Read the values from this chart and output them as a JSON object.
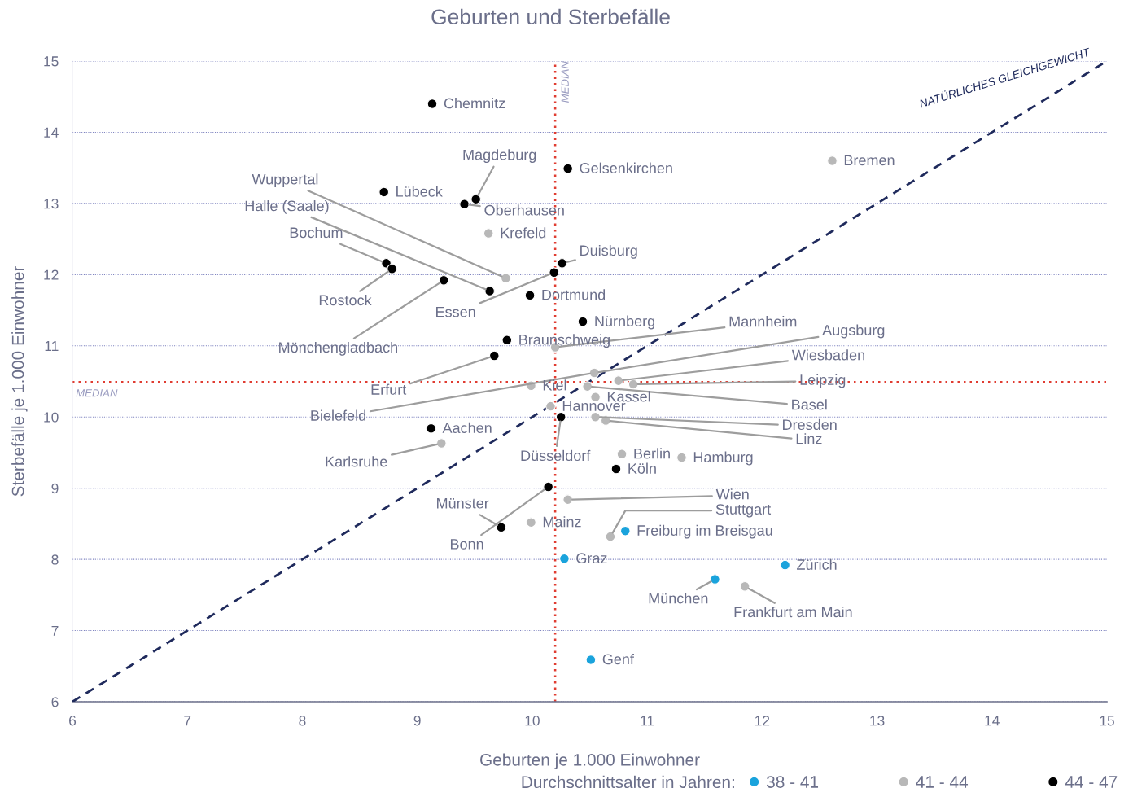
{
  "chart_data": {
    "type": "scatter",
    "title": "Geburten und Sterbefälle",
    "xlabel": "Geburten je 1.000 Einwohner",
    "ylabel": "Sterbefälle je 1.000 Einwohner",
    "legend_title": "Durchschnittsalter in Jahren:",
    "xlim": [
      6,
      15
    ],
    "ylim": [
      6,
      15
    ],
    "xticks": [
      6,
      7,
      8,
      9,
      10,
      11,
      12,
      13,
      14,
      15
    ],
    "yticks": [
      6,
      7,
      8,
      9,
      10,
      11,
      12,
      13,
      14,
      15
    ],
    "grid": "y",
    "legend": "bottom",
    "marker": "circle",
    "series": [
      {
        "name": "38 - 41",
        "color": "#1aa3dc",
        "x": [
          10.81,
          10.28,
          12.2,
          11.59,
          10.51
        ],
        "values": [
          8.4,
          8.01,
          7.92,
          7.72,
          6.59
        ]
      },
      {
        "name": "41 - 44",
        "color": "#b8b8b8",
        "x": [
          12.61,
          9.62,
          9.77,
          10.2,
          null,
          10.54,
          10.75,
          10.88,
          10.48,
          9.99,
          10.55,
          10.16,
          10.55,
          10.64,
          9.21,
          10.78,
          11.3,
          10.31,
          10.68,
          9.99,
          11.85
        ],
        "values": [
          13.6,
          12.58,
          11.95,
          10.98,
          null,
          10.62,
          10.51,
          10.46,
          10.43,
          10.44,
          10.28,
          10.15,
          10.0,
          9.95,
          9.63,
          9.48,
          9.43,
          8.84,
          8.32,
          8.52,
          7.62
        ]
      },
      {
        "name": "44 - 47",
        "color": "#000000",
        "x": [
          9.13,
          10.31,
          8.71,
          9.51,
          9.41,
          10.26,
          8.73,
          8.78,
          10.19,
          9.98,
          9.23,
          9.63,
          10.44,
          9.78,
          9.67,
          9.12,
          10.25,
          10.73,
          10.14,
          9.73
        ],
        "values": [
          14.4,
          13.49,
          13.16,
          13.06,
          12.99,
          12.16,
          12.16,
          12.08,
          12.03,
          11.71,
          11.92,
          11.77,
          11.34,
          11.08,
          10.86,
          9.84,
          10.0,
          9.27,
          9.02,
          8.45
        ]
      },
      {
        "type": "line",
        "name": "NATÜRLICHES GLEICHGEWICHT",
        "color": "#1f2a5c",
        "line_style": "dashed",
        "marker": "none",
        "x": [
          6,
          15
        ],
        "values": [
          6,
          15
        ]
      }
    ],
    "ref_lines": [
      {
        "axis": "x",
        "value": 10.2,
        "label": "MEDIAN",
        "color": "#e03c31",
        "line_style": "dotted"
      },
      {
        "axis": "y",
        "value": 10.49,
        "label": "MEDIAN",
        "color": "#e03c31",
        "line_style": "dotted"
      }
    ],
    "annotations": [
      {
        "text": "Freiburg im Breisgau",
        "x": 10.81,
        "y": 8.4
      },
      {
        "text": "Graz",
        "x": 10.28,
        "y": 8.01
      },
      {
        "text": "Zürich",
        "x": 12.2,
        "y": 7.92
      },
      {
        "text": "München",
        "x": 11.59,
        "y": 7.72
      },
      {
        "text": "Genf",
        "x": 10.51,
        "y": 6.59
      },
      {
        "text": "Bremen",
        "x": 12.61,
        "y": 13.6
      },
      {
        "text": "Krefeld",
        "x": 9.62,
        "y": 12.58
      },
      {
        "text": "Wuppertal",
        "x": 9.77,
        "y": 11.95
      },
      {
        "text": "Mannheim",
        "x": 10.2,
        "y": 10.98
      },
      {
        "text": "Augsburg",
        "x": 10.54,
        "y": 10.62
      },
      {
        "text": "Bielefeld",
        "x": 10.54,
        "y": 10.62
      },
      {
        "text": "Wiesbaden",
        "x": 10.75,
        "y": 10.51
      },
      {
        "text": "Leipzig",
        "x": 10.88,
        "y": 10.46
      },
      {
        "text": "Basel",
        "x": 10.48,
        "y": 10.43
      },
      {
        "text": "Kiel",
        "x": 9.99,
        "y": 10.44
      },
      {
        "text": "Kassel",
        "x": 10.55,
        "y": 10.28
      },
      {
        "text": "Hannover",
        "x": 10.16,
        "y": 10.15
      },
      {
        "text": "Dresden",
        "x": 10.55,
        "y": 10.0
      },
      {
        "text": "Linz",
        "x": 10.64,
        "y": 9.95
      },
      {
        "text": "Karlsruhe",
        "x": 9.21,
        "y": 9.63
      },
      {
        "text": "Berlin",
        "x": 10.78,
        "y": 9.48
      },
      {
        "text": "Hamburg",
        "x": 11.3,
        "y": 9.43
      },
      {
        "text": "Wien",
        "x": 10.31,
        "y": 8.84
      },
      {
        "text": "Stuttgart",
        "x": 10.68,
        "y": 8.32
      },
      {
        "text": "Mainz",
        "x": 9.99,
        "y": 8.52
      },
      {
        "text": "Frankfurt am Main",
        "x": 11.85,
        "y": 7.62
      },
      {
        "text": "Chemnitz",
        "x": 9.13,
        "y": 14.4
      },
      {
        "text": "Gelsenkirchen",
        "x": 10.31,
        "y": 13.49
      },
      {
        "text": "Lübeck",
        "x": 8.71,
        "y": 13.16
      },
      {
        "text": "Magdeburg",
        "x": 9.51,
        "y": 13.06
      },
      {
        "text": "Oberhausen",
        "x": 9.41,
        "y": 12.99
      },
      {
        "text": "Duisburg",
        "x": 10.26,
        "y": 12.16
      },
      {
        "text": "Bochum",
        "x": 8.73,
        "y": 12.16
      },
      {
        "text": "Rostock",
        "x": 8.78,
        "y": 12.08
      },
      {
        "text": "Essen",
        "x": 10.19,
        "y": 12.03
      },
      {
        "text": "Dortmund",
        "x": 9.98,
        "y": 11.71
      },
      {
        "text": "Mönchengladbach",
        "x": 9.23,
        "y": 11.92
      },
      {
        "text": "Halle (Saale)",
        "x": 9.63,
        "y": 11.77
      },
      {
        "text": "Nürnberg",
        "x": 10.44,
        "y": 11.34
      },
      {
        "text": "Braunschweig",
        "x": 9.78,
        "y": 11.08
      },
      {
        "text": "Erfurt",
        "x": 9.67,
        "y": 10.86
      },
      {
        "text": "Aachen",
        "x": 9.12,
        "y": 9.84
      },
      {
        "text": "Düsseldorf",
        "x": 10.25,
        "y": 10.0
      },
      {
        "text": "Köln",
        "x": 10.73,
        "y": 9.27
      },
      {
        "text": "Bonn",
        "x": 10.14,
        "y": 9.02
      },
      {
        "text": "Münster",
        "x": 9.73,
        "y": 8.45
      }
    ]
  }
}
